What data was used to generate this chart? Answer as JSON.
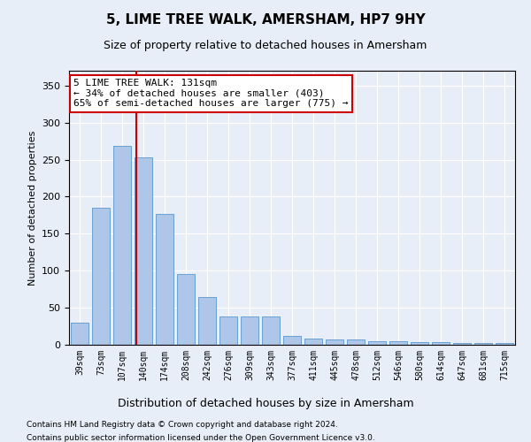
{
  "title": "5, LIME TREE WALK, AMERSHAM, HP7 9HY",
  "subtitle": "Size of property relative to detached houses in Amersham",
  "xlabel": "Distribution of detached houses by size in Amersham",
  "ylabel": "Number of detached properties",
  "categories": [
    "39sqm",
    "73sqm",
    "107sqm",
    "140sqm",
    "174sqm",
    "208sqm",
    "242sqm",
    "276sqm",
    "309sqm",
    "343sqm",
    "377sqm",
    "411sqm",
    "445sqm",
    "478sqm",
    "512sqm",
    "546sqm",
    "580sqm",
    "614sqm",
    "647sqm",
    "681sqm",
    "715sqm"
  ],
  "values": [
    30,
    185,
    268,
    253,
    177,
    95,
    65,
    38,
    38,
    38,
    12,
    8,
    7,
    7,
    5,
    5,
    3,
    3,
    2,
    2,
    2
  ],
  "bar_color": "#aec6e8",
  "bar_edge_color": "#6aa0d4",
  "ylim": [
    0,
    370
  ],
  "yticks": [
    0,
    50,
    100,
    150,
    200,
    250,
    300,
    350
  ],
  "annotation_text": "5 LIME TREE WALK: 131sqm\n← 34% of detached houses are smaller (403)\n65% of semi-detached houses are larger (775) →",
  "vline_position": 2.65,
  "annotation_box_color": "#ffffff",
  "annotation_box_edge_color": "#cc0000",
  "footer_line1": "Contains HM Land Registry data © Crown copyright and database right 2024.",
  "footer_line2": "Contains public sector information licensed under the Open Government Licence v3.0.",
  "background_color": "#e8eef7",
  "plot_bg_color": "#e8eef7",
  "grid_color": "#ffffff",
  "vline_color": "#cc0000"
}
